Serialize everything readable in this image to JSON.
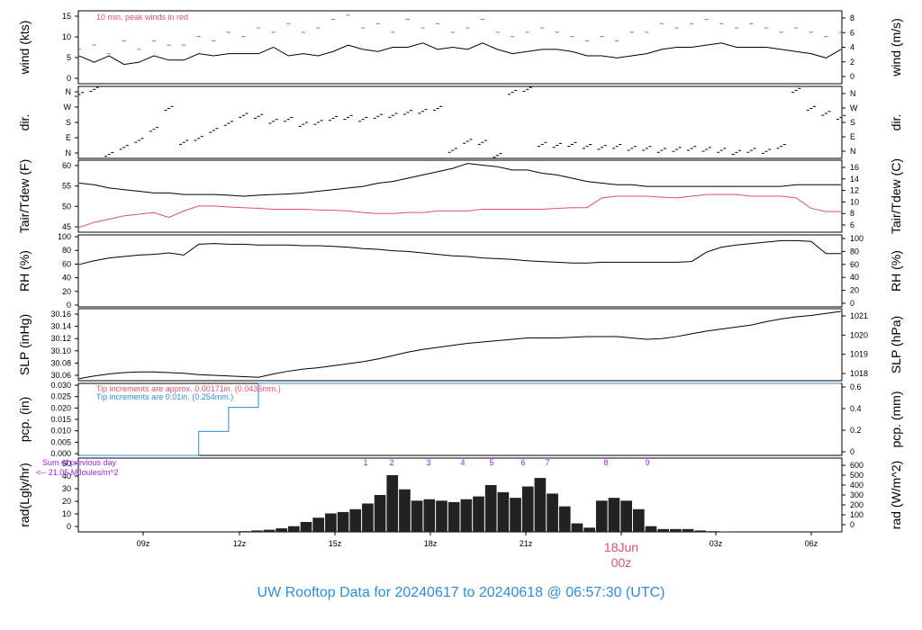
{
  "title": "UW Rooftop Data for 20240617  to  20240618 @ 06:57:30  (UTC)",
  "colors": {
    "line": "#000000",
    "red": "#e0506a",
    "blue": "#2a8fd6",
    "purple": "#a020f0",
    "title": "#2b8fd6"
  },
  "x_axis": {
    "ticks": [
      "09z",
      "12z",
      "15z",
      "18z",
      "21z",
      "00z",
      "03z",
      "06z"
    ],
    "date_label": "18Jun",
    "date_sub": "00z"
  },
  "chart_data": [
    {
      "type": "line",
      "id": "wind",
      "ylabel_left": "wind (kts)",
      "ylabel_right": "wind (m/s)",
      "yticks_left": [
        "0",
        "5",
        "10",
        "15"
      ],
      "yticks_right": [
        "0",
        "2",
        "4",
        "6",
        "8"
      ],
      "ylim": [
        0,
        17
      ],
      "annotation": "10 min. peak winds in red",
      "series": [
        {
          "values": [
            6.5,
            5.0,
            6.5,
            4.5,
            5.0,
            6.5,
            5.5,
            5.5,
            7.0,
            6.5,
            7.0,
            7.0,
            7.0,
            8.5,
            6.5,
            7.0,
            6.5,
            7.5,
            9.0,
            8.0,
            7.5,
            8.5,
            8.5,
            9.5,
            8.0,
            8.5,
            8.0,
            9.5,
            8.0,
            7.0,
            7.5,
            8.0,
            8.0,
            7.5,
            6.5,
            6.5,
            6.0,
            6.5,
            7.0,
            8.0,
            8.5,
            8.5,
            9.0,
            9.5,
            8.5,
            8.5,
            8.5,
            8.0,
            7.5,
            7.0,
            6.0,
            8.0
          ]
        },
        {
          "name": "10 min. peak winds",
          "values": [
            8,
            9,
            7,
            10,
            8,
            10,
            9,
            9,
            11,
            10,
            12,
            11,
            13,
            12,
            14,
            12,
            13,
            15,
            16,
            13,
            14,
            12,
            15,
            13,
            14,
            12,
            13,
            15,
            12,
            11,
            12,
            13,
            12,
            11,
            10,
            11,
            10,
            12,
            12,
            14,
            13,
            14,
            15,
            14,
            13,
            14,
            13,
            12,
            13,
            12,
            11,
            12
          ]
        }
      ]
    },
    {
      "type": "scatter",
      "id": "dir",
      "ylabel_left": "dir.",
      "ylabel_right": "dir.",
      "yticks_left": [
        "N",
        "E",
        "S",
        "W",
        "N"
      ],
      "yticks_right": [
        "N",
        "E",
        "S",
        "W",
        "N"
      ],
      "ylim": [
        0,
        360
      ],
      "series": [
        {
          "values": [
            320,
            345,
            20,
            55,
            90,
            145,
            250,
            80,
            100,
            140,
            175,
            215,
            210,
            185,
            195,
            170,
            180,
            200,
            205,
            195,
            210,
            215,
            230,
            235,
            250,
            40,
            85,
            80,
            15,
            330,
            345,
            70,
            65,
            70,
            60,
            55,
            60,
            50,
            50,
            40,
            45,
            50,
            45,
            40,
            30,
            40,
            35,
            60,
            340,
            250,
            225,
            205
          ]
        }
      ]
    },
    {
      "type": "line",
      "id": "temp",
      "ylabel_left": "Tair/Tdew (F)",
      "ylabel_right": "Tair/Tdew (C)",
      "yticks_left": [
        "45",
        "50",
        "55",
        "60"
      ],
      "yticks_right": [
        "6",
        "8",
        "10",
        "12",
        "14",
        "16"
      ],
      "ylim": [
        40.5,
        62.5
      ],
      "series": [
        {
          "name": "Tair",
          "values": [
            55.5,
            55,
            54,
            53.5,
            53,
            52.5,
            52.5,
            52,
            52,
            52,
            51.8,
            51.5,
            51.8,
            52,
            52.2,
            52.5,
            53,
            53.5,
            54,
            54.5,
            55.5,
            56,
            57,
            58,
            59,
            60,
            61.5,
            61,
            60.5,
            59.5,
            59.5,
            58.5,
            58,
            57,
            56,
            55.5,
            55,
            55,
            54.5,
            54.5,
            54.5,
            54.5,
            54.5,
            54.5,
            54.5,
            54.5,
            54.5,
            54.5,
            55,
            55,
            55,
            55
          ]
        },
        {
          "name": "Tdew",
          "values": [
            42,
            43.5,
            44.5,
            45.5,
            46,
            46.5,
            45,
            47,
            48.5,
            48.5,
            48.2,
            48,
            47.8,
            47.5,
            47.5,
            47.5,
            47.3,
            47.2,
            47,
            46.5,
            46.2,
            46.2,
            46.5,
            46.5,
            47,
            47,
            47,
            47.5,
            47.5,
            47.5,
            47.5,
            47.5,
            47.8,
            48,
            48,
            51,
            51.5,
            51.5,
            51.5,
            51.2,
            51,
            51.5,
            52,
            52,
            52,
            51.5,
            51.5,
            51.5,
            51,
            47.8,
            46.8,
            46.8
          ]
        }
      ]
    },
    {
      "type": "line",
      "id": "rh",
      "ylabel_left": "RH (%)",
      "ylabel_right": "RH (%)",
      "yticks_left": [
        "0",
        "20",
        "40",
        "60",
        "80",
        "100"
      ],
      "yticks_right": [
        "0",
        "20",
        "40",
        "60",
        "80",
        "100"
      ],
      "ylim": [
        0,
        100
      ],
      "series": [
        {
          "values": [
            59,
            64,
            68,
            70,
            72,
            73,
            75,
            72,
            87,
            88,
            87,
            87,
            86,
            86,
            86,
            85,
            85,
            84,
            83,
            81,
            80,
            78,
            77,
            75,
            73,
            71,
            70,
            68,
            67,
            66,
            64,
            63,
            62,
            61,
            61,
            62,
            62,
            62,
            62,
            62,
            62,
            63,
            76,
            83,
            86,
            88,
            90,
            92,
            92,
            91,
            74,
            74
          ]
        }
      ]
    },
    {
      "type": "line",
      "id": "slp",
      "ylabel_left": "SLP (inHg)",
      "ylabel_right": "SLP (hPa)",
      "yticks_left": [
        "30.06",
        "30.08",
        "30.10",
        "30.12",
        "30.14",
        "30.16"
      ],
      "yticks_right": [
        "1018",
        "1019",
        "1020",
        "1021"
      ],
      "ylim": [
        30.055,
        30.161
      ],
      "series": [
        {
          "values": [
            30.058,
            30.062,
            30.065,
            30.067,
            30.068,
            30.068,
            30.067,
            30.066,
            30.064,
            30.063,
            30.062,
            30.061,
            30.06,
            30.065,
            30.069,
            30.072,
            30.074,
            30.077,
            30.08,
            30.083,
            30.087,
            30.092,
            30.097,
            30.101,
            30.104,
            30.107,
            30.11,
            30.112,
            30.114,
            30.116,
            30.118,
            30.118,
            30.118,
            30.119,
            30.12,
            30.12,
            30.12,
            30.118,
            30.116,
            30.117,
            30.12,
            30.124,
            30.128,
            30.131,
            30.134,
            30.137,
            30.142,
            30.146,
            30.149,
            30.151,
            30.154,
            30.157
          ]
        }
      ]
    },
    {
      "type": "line",
      "id": "pcp",
      "ylabel_left": "pcp. (in)",
      "ylabel_right": "pcp. (mm)",
      "yticks_left": [
        "0.000",
        "0.005",
        "0.010",
        "0.015",
        "0.020",
        "0.025",
        "0.030"
      ],
      "yticks_right": [
        "0",
        "0.2",
        "0.4",
        "0.6"
      ],
      "ylim": [
        0,
        0.03
      ],
      "annotation_red": "Tip increments are approx. 0.00171in. (0.0435mm.)",
      "annotation_blue": "Tip increments are 0.01in. (0.254mm.)",
      "series": [
        {
          "values": [
            0,
            0,
            0,
            0,
            0,
            0,
            0,
            0,
            0.01,
            0.01,
            0.02,
            0.02,
            0.03,
            0.03,
            0.03,
            0.03,
            0.03,
            0.03,
            0.03,
            0.03,
            0.03,
            0.03,
            0.03,
            0.03,
            0.03,
            0.03,
            0.03,
            0.03,
            0.03,
            0.03,
            0.03,
            0.03,
            0.03,
            0.03,
            0.03,
            0.03,
            0.03,
            0.03,
            0.03,
            0.03,
            0.03,
            0.03,
            0.03,
            0.03,
            0.03,
            0.03,
            0.03,
            0.03,
            0.03,
            0.03,
            0.03,
            0.03
          ]
        }
      ]
    },
    {
      "type": "bar",
      "id": "rad",
      "ylabel_left": "rad(Lgly/hr)",
      "ylabel_right": "rad (W/m^2)",
      "yticks_left": [
        "0",
        "10",
        "20",
        "30",
        "40",
        "50"
      ],
      "yticks_right": [
        "0",
        "100",
        "200",
        "300",
        "400",
        "500",
        "600"
      ],
      "ylim": [
        0,
        52
      ],
      "annotation_line1": "Sum of previous day",
      "annotation_line2": "<-- 21.05 MJoules/m^2",
      "markers": [
        "1",
        "2",
        "3",
        "4",
        "5",
        "6",
        "7",
        "8",
        "9"
      ],
      "series": [
        {
          "values": [
            0,
            0,
            0,
            0,
            0,
            0,
            0,
            0,
            0,
            0,
            0,
            0,
            0,
            0.5,
            1,
            1.5,
            2.5,
            4,
            7,
            10,
            13,
            14,
            16,
            20,
            26,
            40,
            30,
            22,
            23,
            22,
            21,
            23,
            25,
            33,
            28,
            24,
            32,
            38,
            27,
            18,
            6,
            3,
            22,
            24,
            22,
            16,
            4,
            2,
            2,
            2,
            1,
            0.5,
            0.3,
            0,
            0,
            0,
            0,
            0,
            0,
            0,
            0,
            0
          ]
        }
      ]
    }
  ]
}
